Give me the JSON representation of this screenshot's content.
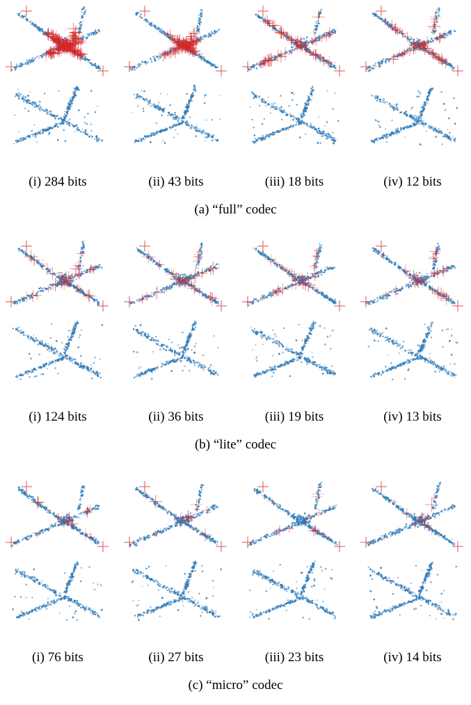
{
  "figure": {
    "panels": [
      {
        "caption": "(a) “full” codec",
        "columns": [
          {
            "label": "(i) 284 bits",
            "marker_density": 1.0
          },
          {
            "label": "(ii) 43 bits",
            "marker_density": 0.55
          },
          {
            "label": "(iii) 18 bits",
            "marker_density": 0.35
          },
          {
            "label": "(iv) 12 bits",
            "marker_density": 0.3
          }
        ]
      },
      {
        "caption": "(b) “lite” codec",
        "columns": [
          {
            "label": "(i) 124 bits",
            "marker_density": 0.2
          },
          {
            "label": "(ii) 36 bits",
            "marker_density": 0.18
          },
          {
            "label": "(iii) 19 bits",
            "marker_density": 0.16
          },
          {
            "label": "(iv) 13 bits",
            "marker_density": 0.15
          }
        ]
      },
      {
        "caption": "(c) “micro” codec",
        "columns": [
          {
            "label": "(i) 76 bits",
            "marker_density": 0.08
          },
          {
            "label": "(ii) 27 bits",
            "marker_density": 0.07
          },
          {
            "label": "(iii) 23 bits",
            "marker_density": 0.06
          },
          {
            "label": "(iv) 14 bits",
            "marker_density": 0.06
          }
        ]
      }
    ],
    "colors": {
      "points": "#2f7ab8",
      "markers": "#d62728"
    }
  }
}
